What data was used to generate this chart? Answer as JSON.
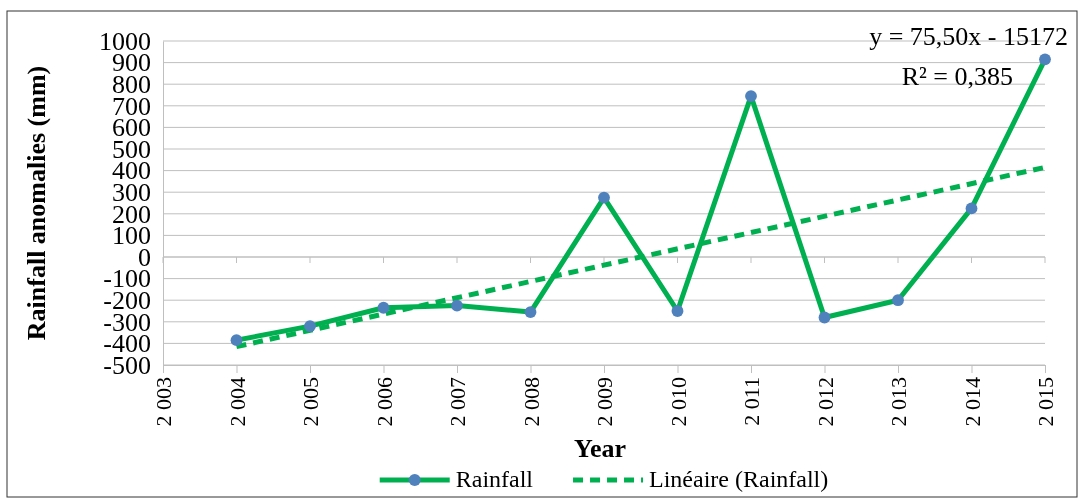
{
  "chart_data": {
    "type": "line",
    "xlabel": "Year",
    "ylabel": "Rainfall anomalies (mm)",
    "x": [
      2004,
      2005,
      2006,
      2007,
      2008,
      2009,
      2010,
      2011,
      2012,
      2013,
      2014,
      2015
    ],
    "series": [
      {
        "name": "Rainfall",
        "color": "#00b050",
        "marker": "circle",
        "colors": [
          "#4f81bd",
          "#4f81bd",
          "#4f81bd",
          "#4f81bd",
          "#4f81bd",
          "#4f81bd",
          "#4f81bd",
          "#4f81bd",
          "#4f81bd",
          "#4f81bd",
          "#4f81bd",
          "#4f81bd"
        ],
        "line_style": "solid",
        "values": [
          -385,
          -320,
          -235,
          -225,
          -255,
          275,
          -250,
          745,
          -280,
          -200,
          225,
          915
        ]
      },
      {
        "name": "Linéaire (Rainfall)",
        "color": "#00b050",
        "marker": "none",
        "line_style": "dashed",
        "x": [
          2004,
          2015
        ],
        "values": [
          -415,
          415
        ]
      }
    ],
    "xlim": [
      2003,
      2015
    ],
    "xticks": [
      {
        "value": 2003,
        "label": "2 003"
      },
      {
        "value": 2004,
        "label": "2 004"
      },
      {
        "value": 2005,
        "label": "2 005"
      },
      {
        "value": 2006,
        "label": "2 006"
      },
      {
        "value": 2007,
        "label": "2 007"
      },
      {
        "value": 2008,
        "label": "2 008"
      },
      {
        "value": 2009,
        "label": "2 009"
      },
      {
        "value": 2010,
        "label": "2 010"
      },
      {
        "value": 2011,
        "label": "2 011"
      },
      {
        "value": 2012,
        "label": "2 012"
      },
      {
        "value": 2013,
        "label": "2 013"
      },
      {
        "value": 2014,
        "label": "2 014"
      },
      {
        "value": 2015,
        "label": "2 015"
      }
    ],
    "ylim": [
      -500,
      1000
    ],
    "yticks": [
      -500,
      -400,
      -300,
      -200,
      -100,
      0,
      100,
      200,
      300,
      400,
      500,
      600,
      700,
      800,
      900,
      1000
    ],
    "grid": "y",
    "legend": "bottom",
    "annotations": [
      "y = 75,50x - 15172",
      "R² = 0,385"
    ]
  }
}
